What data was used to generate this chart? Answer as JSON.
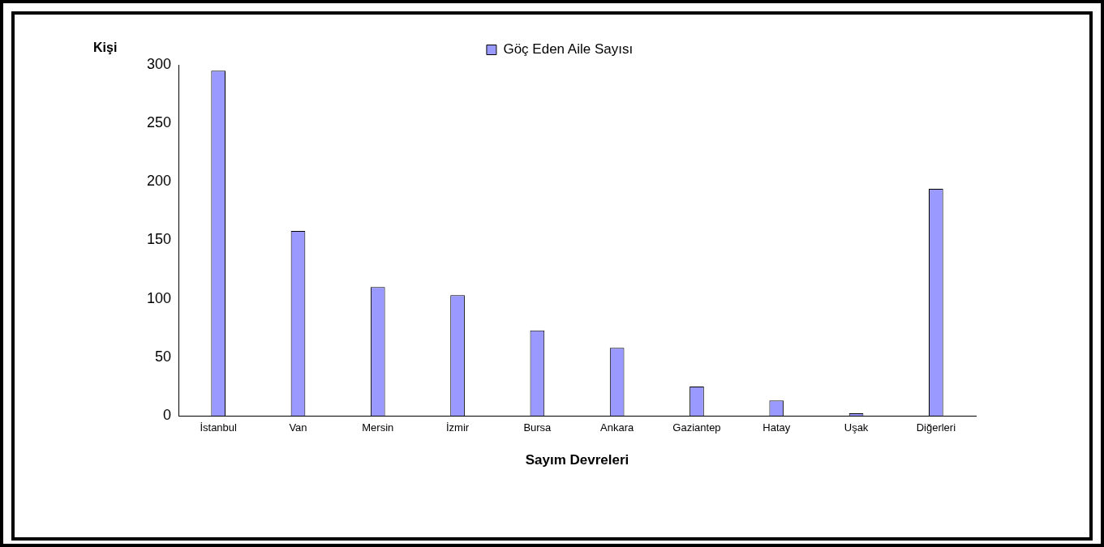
{
  "chart_data": {
    "type": "bar",
    "categories": [
      "İstanbul",
      "Van",
      "Mersin",
      "İzmir",
      "Bursa",
      "Ankara",
      "Gaziantep",
      "Hatay",
      "Uşak",
      "Diğerleri"
    ],
    "series": [
      {
        "name": "Göç Eden Aile Sayısı",
        "color": "#9999ff",
        "values": [
          295,
          158,
          110,
          103,
          73,
          58,
          25,
          13,
          2,
          194
        ]
      }
    ],
    "xlabel": "Sayım Devreleri",
    "ylabel": "Kişi",
    "ylim": [
      0,
      300
    ],
    "yticks": [
      0,
      50,
      100,
      150,
      200,
      250,
      300
    ],
    "grid": false,
    "legend": "top"
  }
}
